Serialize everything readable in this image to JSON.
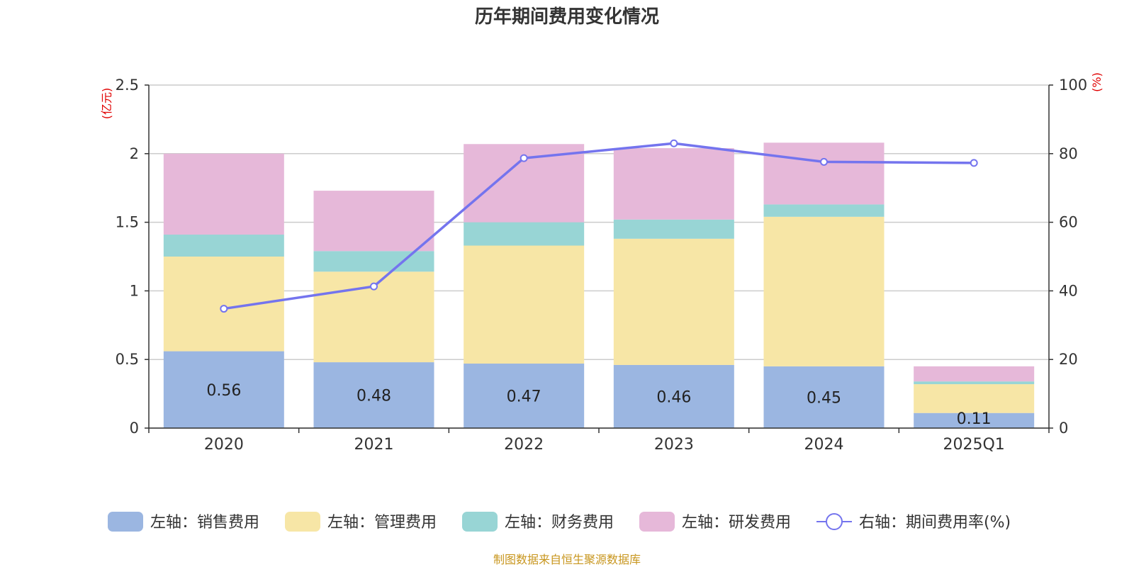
{
  "chart_data": {
    "type": "bar",
    "title": "历年期间费用变化情况",
    "categories": [
      "2020",
      "2021",
      "2022",
      "2023",
      "2024",
      "2025Q1"
    ],
    "series": [
      {
        "name": "左轴：销售费用",
        "axis": "left",
        "color": "#9bb6e1",
        "values": [
          0.56,
          0.48,
          0.47,
          0.46,
          0.45,
          0.11
        ]
      },
      {
        "name": "左轴：管理费用",
        "axis": "left",
        "color": "#f7e6a6",
        "values": [
          0.69,
          0.66,
          0.86,
          0.92,
          1.09,
          0.21
        ]
      },
      {
        "name": "左轴：财务费用",
        "axis": "left",
        "color": "#98d5d5",
        "values": [
          0.16,
          0.15,
          0.17,
          0.14,
          0.09,
          0.02
        ]
      },
      {
        "name": "左轴：研发费用",
        "axis": "left",
        "color": "#e6b8d9",
        "values": [
          0.59,
          0.44,
          0.57,
          0.52,
          0.45,
          0.11
        ]
      },
      {
        "name": "右轴：期间费用率(%)",
        "axis": "right",
        "type": "line",
        "color": "#7474ee",
        "values": [
          34.8,
          41.3,
          78.7,
          83.0,
          77.6,
          77.3
        ]
      }
    ],
    "data_labels": [
      "0.56",
      "0.48",
      "0.47",
      "0.46",
      "0.45",
      "0.11"
    ],
    "left_axis": {
      "unit": "(亿元)",
      "ylim": [
        0,
        2.5
      ],
      "ticks": [
        "0",
        "0.5",
        "1",
        "1.5",
        "2",
        "2.5"
      ]
    },
    "right_axis": {
      "unit": "(%)",
      "ylim": [
        0,
        100
      ],
      "ticks": [
        "0",
        "20",
        "40",
        "60",
        "80",
        "100"
      ]
    },
    "grid": true,
    "legend_position": "bottom"
  },
  "source": "制图数据来自恒生聚源数据库"
}
